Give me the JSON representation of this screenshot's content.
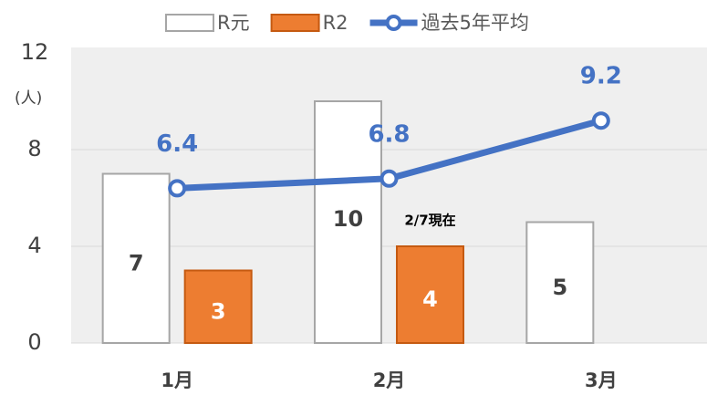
{
  "chart_data": {
    "type": "bar",
    "y_label": "(人)",
    "annotation": "2/7現在",
    "categories": [
      "1月",
      "2月",
      "3月"
    ],
    "series": [
      {
        "name": "R元",
        "type": "bar",
        "color": "#ffffff",
        "edge": "#a6a6a6",
        "label_color": "#404040",
        "values": [
          7,
          10,
          5
        ]
      },
      {
        "name": "R2",
        "type": "bar",
        "color": "#ed7d31",
        "edge": "#c55a11",
        "label_color": "#ffffff",
        "values": [
          3,
          4,
          null
        ]
      },
      {
        "name": "過去5年平均",
        "type": "line",
        "color": "#4472c4",
        "values": [
          6.4,
          6.8,
          9.2
        ]
      }
    ],
    "ylim": [
      0,
      12
    ],
    "yticks": [
      0,
      4,
      8,
      12
    ],
    "grid": true
  }
}
